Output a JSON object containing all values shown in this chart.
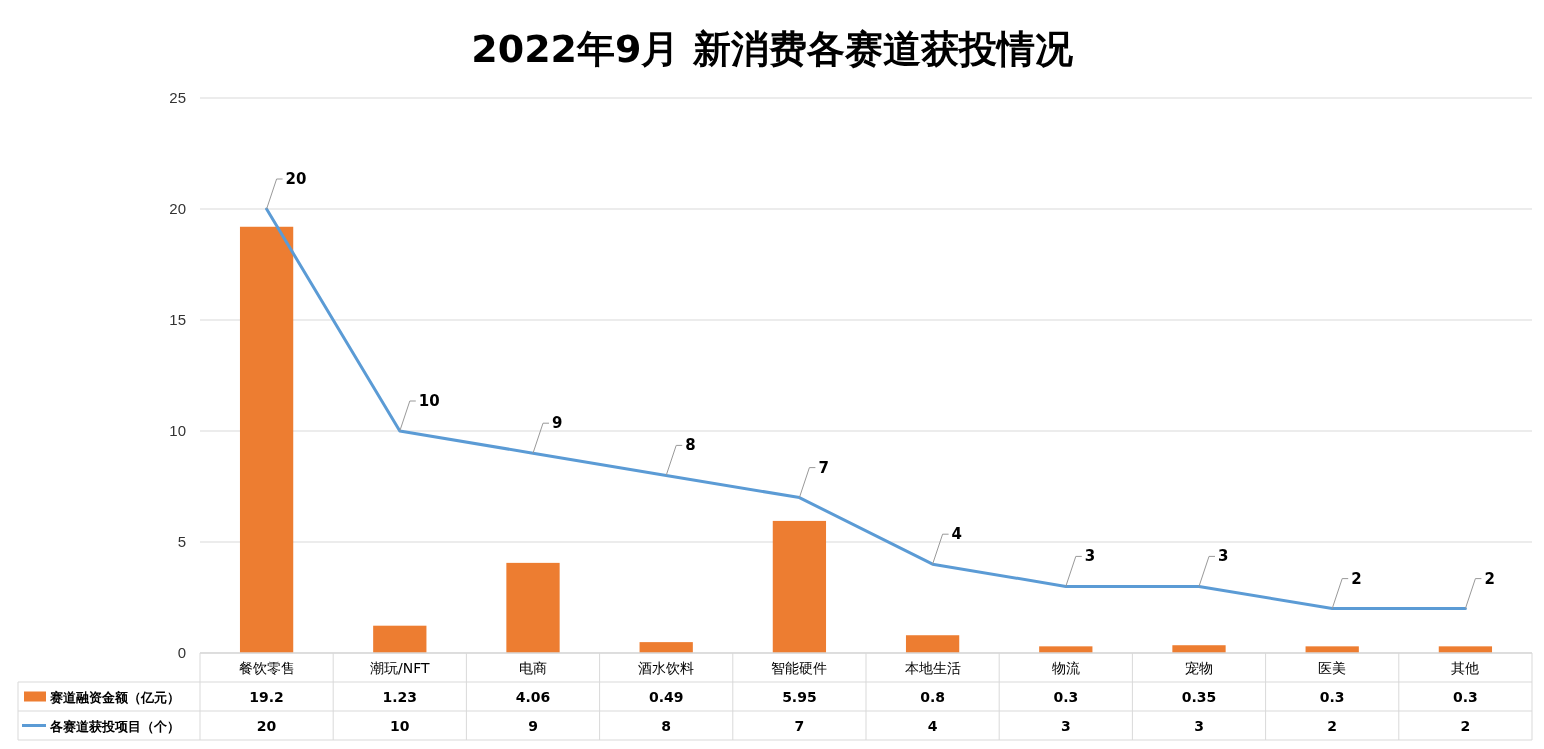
{
  "chart_data": {
    "type": "bar",
    "title": "2022年9月 新消费各赛道获投情况",
    "categories": [
      "餐饮零售",
      "潮玩/NFT",
      "电商",
      "酒水饮料",
      "智能硬件",
      "本地生活",
      "物流",
      "宠物",
      "医美",
      "其他"
    ],
    "series": [
      {
        "name": "赛道融资金额（亿元）",
        "color": "#ed7d31",
        "values": [
          19.2,
          1.23,
          4.06,
          0.49,
          5.95,
          0.8,
          0.3,
          0.35,
          0.3,
          0.3
        ]
      },
      {
        "name": "各赛道获投项目（个）",
        "type": "line",
        "color": "#5b9bd5",
        "values": [
          20,
          10,
          9,
          8,
          7,
          4,
          3,
          3,
          2,
          2
        ]
      }
    ],
    "annotations": [
      {
        "text": "20",
        "x": "餐饮零售",
        "y": 20
      },
      {
        "text": "10",
        "x": "潮玩/NFT",
        "y": 10
      },
      {
        "text": "9",
        "x": "电商",
        "y": 9
      },
      {
        "text": "8",
        "x": "酒水饮料",
        "y": 8
      },
      {
        "text": "7",
        "x": "智能硬件",
        "y": 7
      },
      {
        "text": "4",
        "x": "本地生活",
        "y": 4
      },
      {
        "text": "3",
        "x": "物流",
        "y": 3
      },
      {
        "text": "3",
        "x": "宠物",
        "y": 3
      },
      {
        "text": "2",
        "x": "医美",
        "y": 2
      },
      {
        "text": "2",
        "x": "其他",
        "y": 2
      }
    ],
    "ylim": [
      0,
      25
    ],
    "yticks": [
      0,
      5,
      10,
      15,
      20,
      25
    ],
    "grid": "y",
    "legend": "bottom",
    "data_labels": true,
    "marker": "none",
    "line_style": "solid"
  }
}
